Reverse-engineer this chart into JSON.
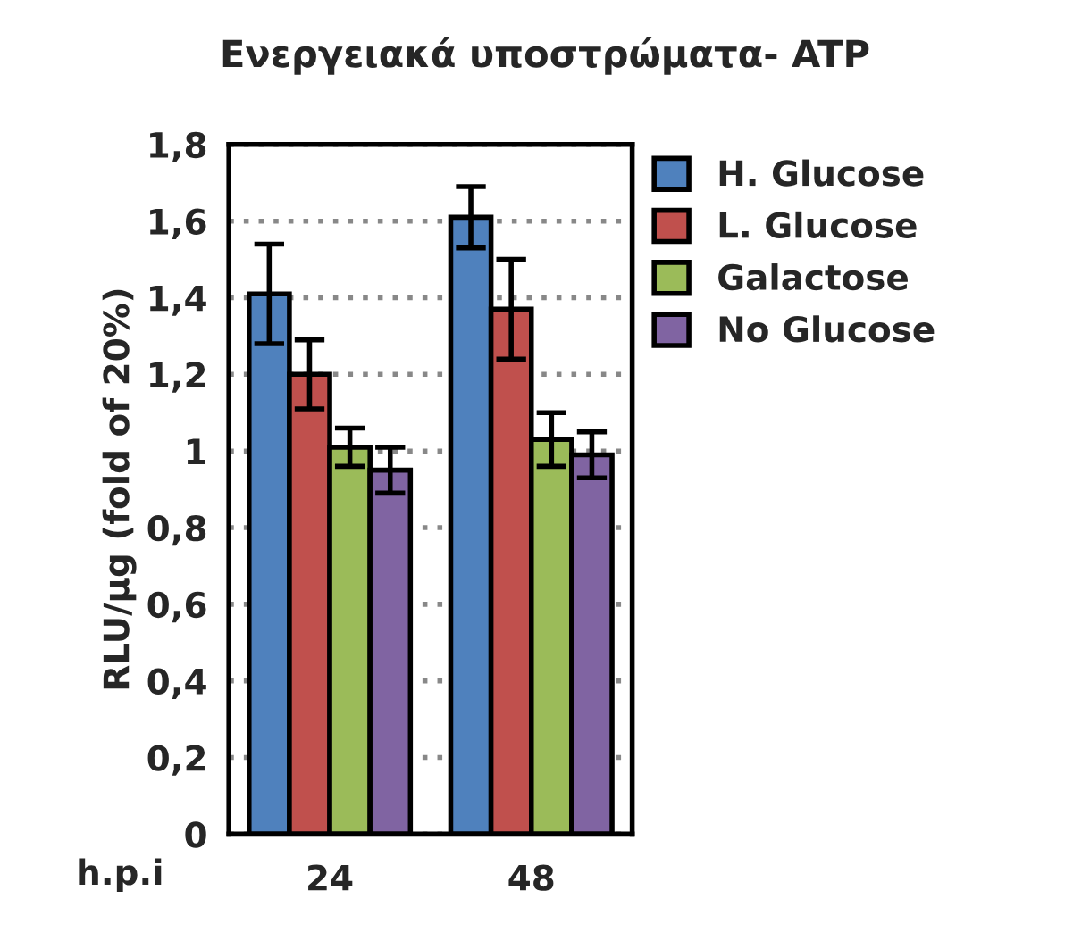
{
  "chart_data": {
    "type": "bar",
    "title": "Ενεργειακά υποστρώματα- ATP",
    "xlabel": "h.p.i",
    "ylabel": "RLU/μg (fold of 20%)",
    "categories": [
      "24",
      "48"
    ],
    "series": [
      {
        "name": "H. Glucose",
        "color": "#4f81bd",
        "values": [
          1.41,
          1.61
        ],
        "errors": [
          0.13,
          0.08
        ]
      },
      {
        "name": "L. Glucose",
        "color": "#c0504d",
        "values": [
          1.2,
          1.37
        ],
        "errors": [
          0.09,
          0.13
        ]
      },
      {
        "name": "Galactose",
        "color": "#9bbb59",
        "values": [
          1.01,
          1.03
        ],
        "errors": [
          0.05,
          0.07
        ]
      },
      {
        "name": "No Glucose",
        "color": "#8064a2",
        "values": [
          0.95,
          0.99
        ],
        "errors": [
          0.06,
          0.06
        ]
      }
    ],
    "ylim": [
      0,
      1.8
    ],
    "yticks": [
      0,
      {
        "value": 0.2,
        "label": "0,2"
      },
      {
        "value": 0.4,
        "label": "0,4"
      },
      {
        "value": 0.6,
        "label": "0,6"
      },
      {
        "value": 0.8,
        "label": "0,8"
      },
      1,
      {
        "value": 1.2,
        "label": "1,2"
      },
      {
        "value": 1.4,
        "label": "1,4"
      },
      {
        "value": 1.6,
        "label": "1,6"
      },
      {
        "value": 1.8,
        "label": "1,8"
      }
    ],
    "grid": "y",
    "legend": "right"
  }
}
